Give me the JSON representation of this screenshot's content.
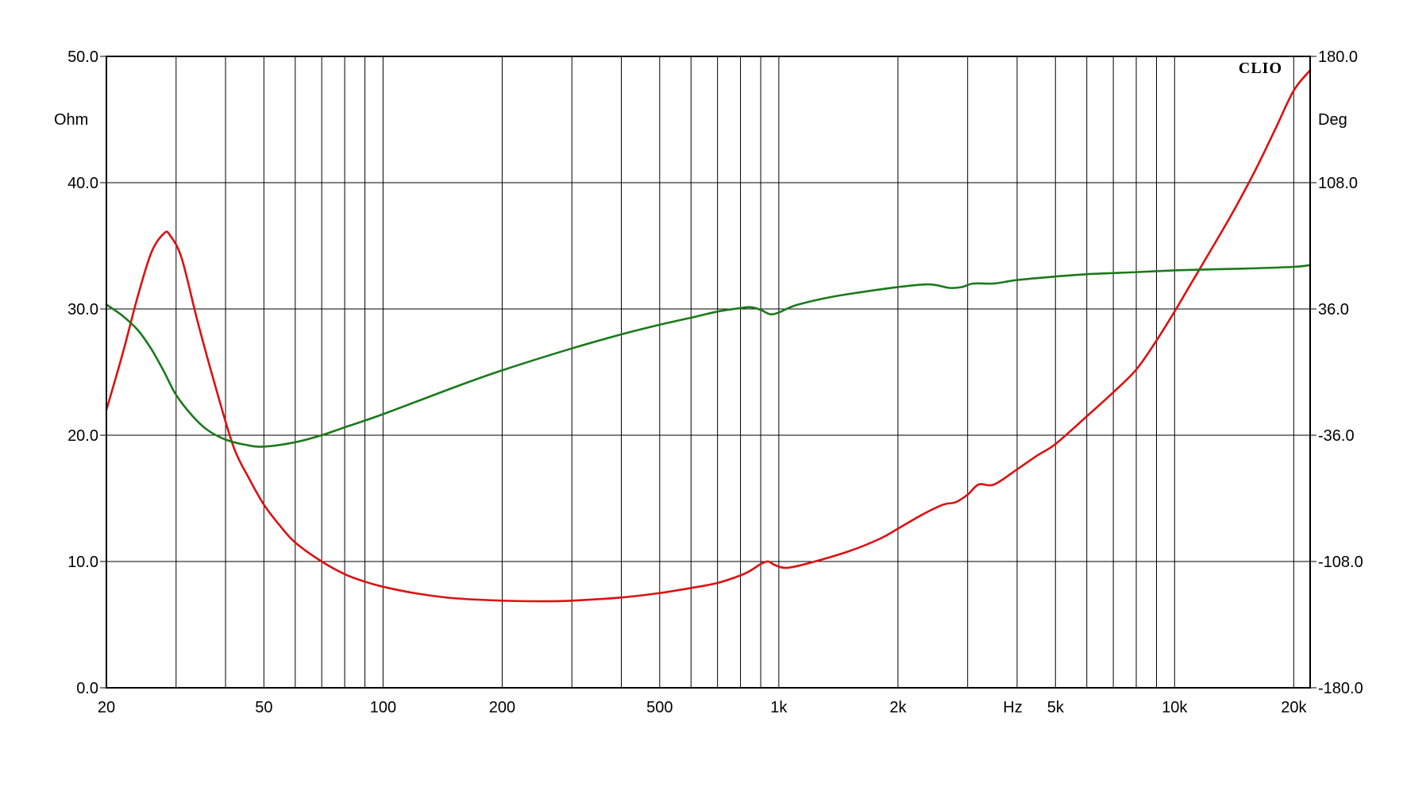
{
  "chart_data": {
    "type": "line",
    "brand": "CLIO",
    "x_scale": "log",
    "xlim": [
      20,
      22000
    ],
    "x_unit_label": "Hz",
    "x_tick_labels": [
      {
        "value": 20,
        "label": "20"
      },
      {
        "value": 50,
        "label": "50"
      },
      {
        "value": 100,
        "label": "100"
      },
      {
        "value": 200,
        "label": "200"
      },
      {
        "value": 500,
        "label": "500"
      },
      {
        "value": 1000,
        "label": "1k"
      },
      {
        "value": 2000,
        "label": "2k"
      },
      {
        "value": 5000,
        "label": "5k"
      },
      {
        "value": 10000,
        "label": "10k"
      },
      {
        "value": 20000,
        "label": "20k"
      }
    ],
    "x_gridlines": [
      30,
      40,
      50,
      60,
      70,
      80,
      90,
      100,
      200,
      300,
      400,
      500,
      600,
      700,
      800,
      900,
      1000,
      2000,
      3000,
      4000,
      5000,
      6000,
      7000,
      8000,
      9000,
      10000,
      20000
    ],
    "y_left": {
      "unit": "Ohm",
      "lim": [
        0,
        50
      ],
      "ticks": [
        "0.0",
        "10.0",
        "20.0",
        "30.0",
        "40.0",
        "50.0"
      ]
    },
    "y_right": {
      "unit": "Deg",
      "lim": [
        -180,
        180
      ],
      "ticks": [
        "-180.0",
        "-108.0",
        "-36.0",
        "36.0",
        "108.0",
        "180.0"
      ]
    },
    "grid": true,
    "series": [
      {
        "axis": "left",
        "color": "#dd1111",
        "points": [
          [
            20,
            22.0
          ],
          [
            22,
            26.5
          ],
          [
            24,
            31.0
          ],
          [
            26,
            34.5
          ],
          [
            28,
            36.0
          ],
          [
            29,
            35.8
          ],
          [
            31,
            34.0
          ],
          [
            34,
            29.0
          ],
          [
            38,
            23.5
          ],
          [
            42,
            19.0
          ],
          [
            46,
            16.5
          ],
          [
            50,
            14.5
          ],
          [
            55,
            12.8
          ],
          [
            60,
            11.5
          ],
          [
            70,
            10.0
          ],
          [
            80,
            9.0
          ],
          [
            90,
            8.4
          ],
          [
            100,
            8.0
          ],
          [
            120,
            7.5
          ],
          [
            150,
            7.1
          ],
          [
            200,
            6.9
          ],
          [
            250,
            6.85
          ],
          [
            300,
            6.9
          ],
          [
            400,
            7.15
          ],
          [
            500,
            7.5
          ],
          [
            600,
            7.9
          ],
          [
            700,
            8.3
          ],
          [
            800,
            8.9
          ],
          [
            850,
            9.3
          ],
          [
            900,
            9.8
          ],
          [
            940,
            10.0
          ],
          [
            980,
            9.7
          ],
          [
            1050,
            9.5
          ],
          [
            1200,
            9.9
          ],
          [
            1500,
            10.8
          ],
          [
            1800,
            11.8
          ],
          [
            2000,
            12.6
          ],
          [
            2300,
            13.7
          ],
          [
            2600,
            14.5
          ],
          [
            2800,
            14.7
          ],
          [
            3000,
            15.3
          ],
          [
            3200,
            16.1
          ],
          [
            3500,
            16.1
          ],
          [
            4000,
            17.3
          ],
          [
            4500,
            18.4
          ],
          [
            5000,
            19.3
          ],
          [
            6000,
            21.5
          ],
          [
            7000,
            23.4
          ],
          [
            8000,
            25.2
          ],
          [
            9000,
            27.5
          ],
          [
            10000,
            29.8
          ],
          [
            11000,
            32.0
          ],
          [
            12000,
            34.0
          ],
          [
            14000,
            37.6
          ],
          [
            16000,
            41.0
          ],
          [
            18000,
            44.3
          ],
          [
            20000,
            47.3
          ],
          [
            22000,
            48.9
          ]
        ]
      },
      {
        "axis": "right",
        "color": "#1a7a1a",
        "points": [
          [
            20,
            38.5
          ],
          [
            22,
            32.0
          ],
          [
            24,
            24.0
          ],
          [
            26,
            13.0
          ],
          [
            28,
            0.0
          ],
          [
            30,
            -13.0
          ],
          [
            33,
            -25.0
          ],
          [
            36,
            -33.0
          ],
          [
            40,
            -38.5
          ],
          [
            45,
            -41.5
          ],
          [
            50,
            -42.5
          ],
          [
            60,
            -40.0
          ],
          [
            70,
            -36.0
          ],
          [
            80,
            -31.5
          ],
          [
            100,
            -24.0
          ],
          [
            150,
            -9.0
          ],
          [
            200,
            1.0
          ],
          [
            300,
            13.5
          ],
          [
            400,
            21.5
          ],
          [
            500,
            27.0
          ],
          [
            600,
            31.0
          ],
          [
            700,
            34.5
          ],
          [
            800,
            36.5
          ],
          [
            850,
            37.0
          ],
          [
            900,
            35.5
          ],
          [
            950,
            33.0
          ],
          [
            1000,
            34.0
          ],
          [
            1100,
            38.0
          ],
          [
            1300,
            42.0
          ],
          [
            1500,
            44.5
          ],
          [
            2000,
            48.5
          ],
          [
            2400,
            50.0
          ],
          [
            2700,
            48.0
          ],
          [
            2900,
            48.5
          ],
          [
            3100,
            50.5
          ],
          [
            3500,
            50.5
          ],
          [
            4000,
            52.5
          ],
          [
            5000,
            54.5
          ],
          [
            6000,
            55.8
          ],
          [
            8000,
            57.0
          ],
          [
            10000,
            58.0
          ],
          [
            12000,
            58.5
          ],
          [
            15000,
            59.0
          ],
          [
            20000,
            60.0
          ],
          [
            22000,
            61.0
          ]
        ]
      }
    ]
  }
}
